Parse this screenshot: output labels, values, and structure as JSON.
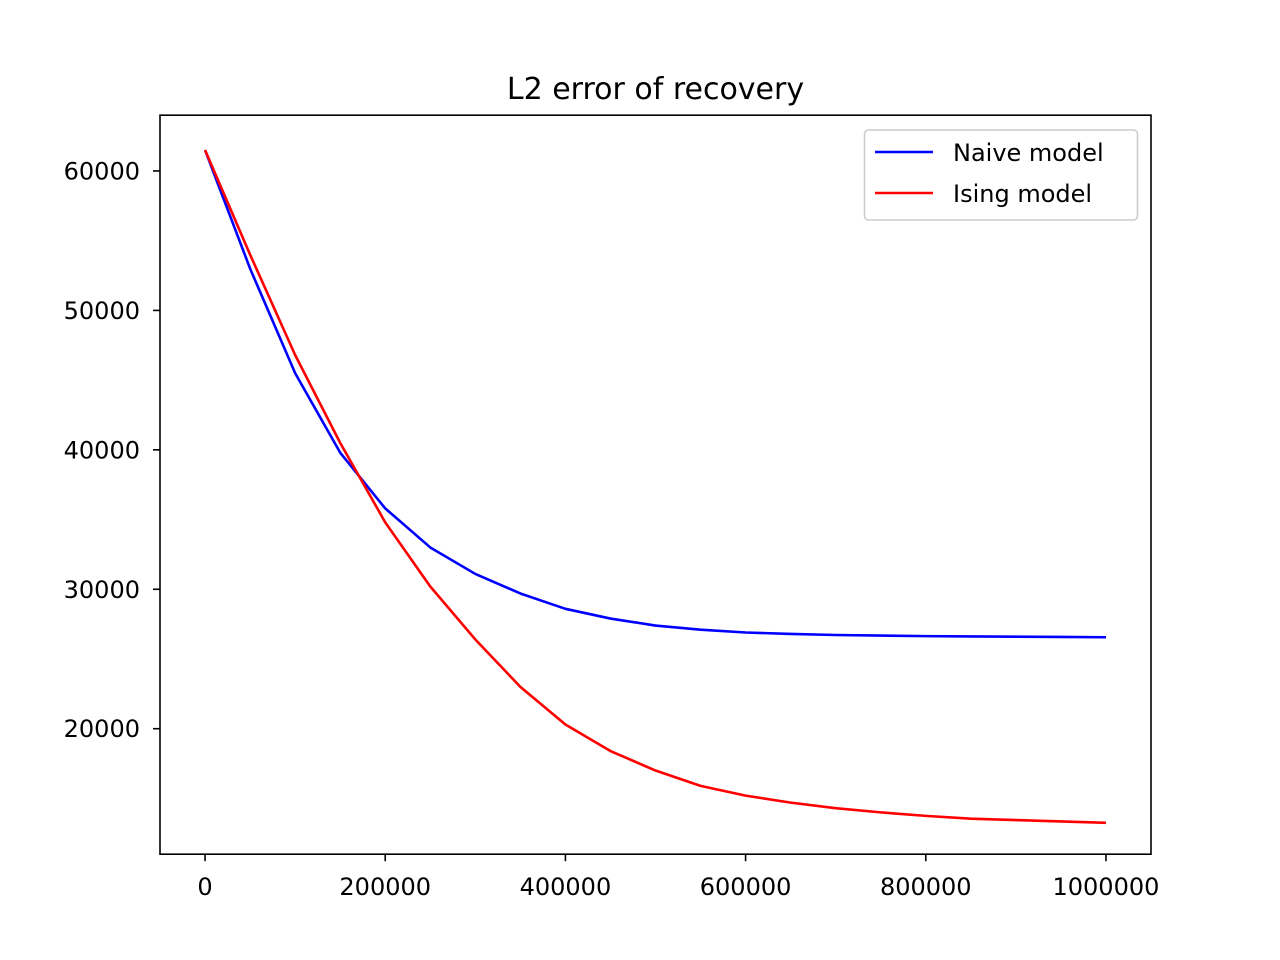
{
  "chart_data": {
    "type": "line",
    "title": "L2 error of recovery",
    "xlabel": "",
    "ylabel": "",
    "xlim": [
      -50000,
      1050000
    ],
    "ylim": [
      11000,
      64000
    ],
    "xticks": [
      0,
      200000,
      400000,
      600000,
      800000,
      1000000
    ],
    "xtick_labels": [
      "0",
      "200000",
      "400000",
      "600000",
      "800000",
      "1000000"
    ],
    "yticks": [
      20000,
      30000,
      40000,
      50000,
      60000
    ],
    "ytick_labels": [
      "20000",
      "30000",
      "40000",
      "50000",
      "60000"
    ],
    "grid": false,
    "legend_position": "top-right",
    "series": [
      {
        "name": "Naive model",
        "color": "#0000ff",
        "x": [
          0,
          50000,
          100000,
          150000,
          200000,
          250000,
          300000,
          350000,
          400000,
          450000,
          500000,
          550000,
          600000,
          650000,
          700000,
          750000,
          800000,
          850000,
          900000,
          950000,
          1000000
        ],
        "values": [
          61500,
          53000,
          45500,
          39800,
          35800,
          33000,
          31100,
          29700,
          28600,
          27900,
          27400,
          27100,
          26900,
          26800,
          26720,
          26680,
          26640,
          26620,
          26600,
          26580,
          26560
        ]
      },
      {
        "name": "Ising model",
        "color": "#ff0000",
        "x": [
          0,
          50000,
          100000,
          150000,
          200000,
          250000,
          300000,
          350000,
          400000,
          450000,
          500000,
          550000,
          600000,
          650000,
          700000,
          750000,
          800000,
          850000,
          900000,
          950000,
          1000000
        ],
        "values": [
          61500,
          54000,
          46800,
          40500,
          34800,
          30200,
          26400,
          23000,
          20300,
          18400,
          17000,
          15900,
          15200,
          14700,
          14300,
          14000,
          13750,
          13550,
          13450,
          13350,
          13250
        ]
      }
    ]
  }
}
